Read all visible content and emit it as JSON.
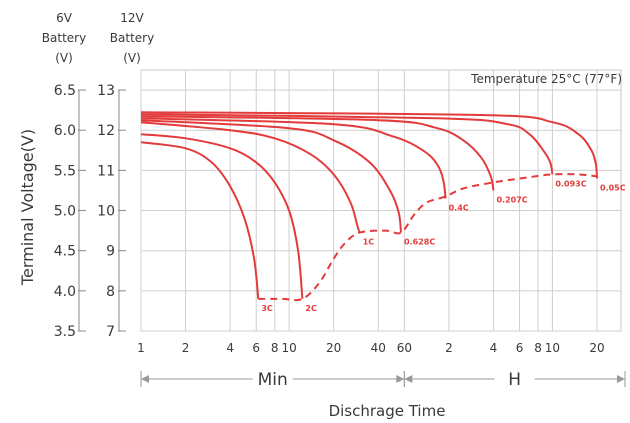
{
  "chart_data": {
    "type": "line",
    "title": "",
    "annotation_temperature": "Temperature 25°C (77°F)",
    "ylabel": "Terminal Voltage(V)",
    "xlabel": "Dischrage Time",
    "y_header_6v": [
      "6V",
      "Battery",
      "(V)"
    ],
    "y_header_12v": [
      "12V",
      "Battery",
      "(V)"
    ],
    "y_ticks_6v": [
      "6.5",
      "6.0",
      "5.5",
      "5.0",
      "4.5",
      "4.0",
      "3.5"
    ],
    "y_ticks_12v": [
      "13",
      "12",
      "11",
      "10",
      "9",
      "8",
      "7"
    ],
    "ylim_12v": [
      7,
      13.5
    ],
    "x_scale": "log (time in minutes)",
    "x_ticks": [
      {
        "label": "1",
        "minutes": 1
      },
      {
        "label": "2",
        "minutes": 2
      },
      {
        "label": "4",
        "minutes": 4
      },
      {
        "label": "6",
        "minutes": 6
      },
      {
        "label": "8",
        "minutes": 8
      },
      {
        "label": "10",
        "minutes": 10
      },
      {
        "label": "20",
        "minutes": 20
      },
      {
        "label": "40",
        "minutes": 40
      },
      {
        "label": "60",
        "minutes": 60
      },
      {
        "label": "2",
        "minutes": 120
      },
      {
        "label": "4",
        "minutes": 240
      },
      {
        "label": "6",
        "minutes": 360
      },
      {
        "label": "8",
        "minutes": 480
      },
      {
        "label": "10",
        "minutes": 600
      },
      {
        "label": "20",
        "minutes": 1200
      }
    ],
    "x_ranges": [
      {
        "label": "Min",
        "from_minutes": 1,
        "to_minutes": 60
      },
      {
        "label": "H",
        "from_minutes": 60,
        "to_minutes": 1200
      }
    ],
    "grid": true,
    "color": "#e33b3b",
    "series": [
      {
        "name": "3C",
        "points": [
          [
            1,
            11.7
          ],
          [
            2,
            11.55
          ],
          [
            3,
            11.2
          ],
          [
            4,
            10.6
          ],
          [
            5,
            9.8
          ],
          [
            5.8,
            8.8
          ],
          [
            6.2,
            7.8
          ]
        ]
      },
      {
        "name": "2C",
        "points": [
          [
            1,
            11.9
          ],
          [
            2,
            11.8
          ],
          [
            4,
            11.55
          ],
          [
            6,
            11.2
          ],
          [
            8,
            10.7
          ],
          [
            10,
            10.0
          ],
          [
            11.5,
            9.0
          ],
          [
            12.3,
            7.8
          ]
        ]
      },
      {
        "name": "1C",
        "points": [
          [
            1,
            12.2
          ],
          [
            4,
            12.0
          ],
          [
            8,
            11.8
          ],
          [
            14,
            11.4
          ],
          [
            20,
            10.9
          ],
          [
            26,
            10.2
          ],
          [
            29,
            9.6
          ],
          [
            30,
            9.45
          ]
        ]
      },
      {
        "name": "0.628C",
        "points": [
          [
            1,
            12.25
          ],
          [
            10,
            12.05
          ],
          [
            20,
            11.75
          ],
          [
            35,
            11.2
          ],
          [
            48,
            10.5
          ],
          [
            55,
            9.95
          ],
          [
            57,
            9.45
          ]
        ]
      },
      {
        "name": "0.4C",
        "points": [
          [
            1,
            12.3
          ],
          [
            20,
            12.15
          ],
          [
            50,
            11.85
          ],
          [
            80,
            11.5
          ],
          [
            100,
            11.15
          ],
          [
            110,
            10.75
          ],
          [
            114,
            10.3
          ]
        ]
      },
      {
        "name": "0.207C",
        "points": [
          [
            1,
            12.35
          ],
          [
            40,
            12.25
          ],
          [
            100,
            12.05
          ],
          [
            150,
            11.75
          ],
          [
            200,
            11.3
          ],
          [
            230,
            10.85
          ],
          [
            240,
            10.5
          ]
        ]
      },
      {
        "name": "0.093C",
        "points": [
          [
            1,
            12.4
          ],
          [
            100,
            12.3
          ],
          [
            300,
            12.15
          ],
          [
            420,
            11.9
          ],
          [
            520,
            11.5
          ],
          [
            580,
            11.2
          ],
          [
            600,
            10.9
          ]
        ]
      },
      {
        "name": "0.05C",
        "points": [
          [
            1,
            12.45
          ],
          [
            200,
            12.38
          ],
          [
            600,
            12.2
          ],
          [
            900,
            11.9
          ],
          [
            1100,
            11.5
          ],
          [
            1180,
            11.15
          ],
          [
            1200,
            10.8
          ]
        ]
      }
    ],
    "cutoff_line": {
      "style": "dashed",
      "points": [
        [
          6.2,
          7.8
        ],
        [
          9,
          7.8
        ],
        [
          12.3,
          7.8
        ],
        [
          16,
          8.2
        ],
        [
          20,
          8.8
        ],
        [
          24,
          9.2
        ],
        [
          30,
          9.45
        ],
        [
          45,
          9.5
        ],
        [
          57,
          9.45
        ],
        [
          70,
          9.9
        ],
        [
          85,
          10.2
        ],
        [
          114,
          10.35
        ],
        [
          150,
          10.55
        ],
        [
          240,
          10.7
        ],
        [
          400,
          10.82
        ],
        [
          600,
          10.9
        ],
        [
          900,
          10.9
        ],
        [
          1200,
          10.85
        ]
      ]
    }
  }
}
